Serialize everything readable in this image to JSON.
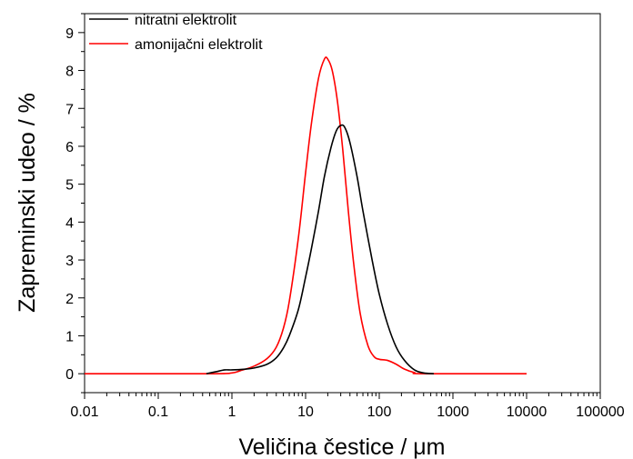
{
  "chart_data": {
    "type": "line",
    "xlabel": "Veličina čestice / μm",
    "ylabel": "Zapreminski udeo / %",
    "xscale": "log",
    "xlim": [
      0.01,
      100000
    ],
    "ylim": [
      -0.5,
      9.5
    ],
    "x_ticks": [
      0.01,
      0.1,
      1,
      10,
      100,
      1000,
      10000,
      100000
    ],
    "x_tick_labels": [
      "0.01",
      "0.1",
      "1",
      "10",
      "100",
      "1000",
      "10000",
      "100000"
    ],
    "y_ticks": [
      0,
      1,
      2,
      3,
      4,
      5,
      6,
      7,
      8,
      9
    ],
    "y_tick_labels": [
      "0",
      "1",
      "2",
      "3",
      "4",
      "5",
      "6",
      "7",
      "8",
      "9"
    ],
    "grid": false,
    "legend_position": "top-left",
    "series": [
      {
        "name": "nitratni elektrolit",
        "color": "#000000",
        "x": [
          0.45,
          0.6,
          0.8,
          1.0,
          1.5,
          2.0,
          3.0,
          4.0,
          5.0,
          6.0,
          8.0,
          10.0,
          12.0,
          15.0,
          18.0,
          22.0,
          26.0,
          30.0,
          34.0,
          40.0,
          50.0,
          60.0,
          80.0,
          100.0,
          130.0,
          170.0,
          220.0,
          300.0,
          400.0,
          550.0
        ],
        "y": [
          0.0,
          0.05,
          0.1,
          0.1,
          0.12,
          0.15,
          0.25,
          0.42,
          0.68,
          1.0,
          1.7,
          2.55,
          3.3,
          4.3,
          5.2,
          5.95,
          6.4,
          6.55,
          6.5,
          6.1,
          5.2,
          4.3,
          3.0,
          2.1,
          1.3,
          0.7,
          0.35,
          0.1,
          0.02,
          0.0
        ]
      },
      {
        "name": "amonijačni elektrolit",
        "color": "#ff0000",
        "x": [
          0.01,
          0.5,
          1.0,
          1.3,
          2.0,
          3.0,
          4.0,
          5.0,
          6.0,
          8.0,
          10.0,
          12.0,
          15.0,
          18.0,
          20.0,
          23.0,
          27.0,
          32.0,
          38.0,
          45.0,
          55.0,
          70.0,
          85.0,
          100.0,
          130.0,
          170.0,
          220.0,
          300.0,
          400.0,
          10000.0
        ],
        "y": [
          0.0,
          0.0,
          0.02,
          0.08,
          0.2,
          0.4,
          0.7,
          1.2,
          1.9,
          3.6,
          5.3,
          6.6,
          7.8,
          8.3,
          8.3,
          8.0,
          7.2,
          5.9,
          4.3,
          2.9,
          1.6,
          0.75,
          0.45,
          0.38,
          0.35,
          0.25,
          0.12,
          0.03,
          0.0,
          0.0
        ]
      }
    ]
  }
}
